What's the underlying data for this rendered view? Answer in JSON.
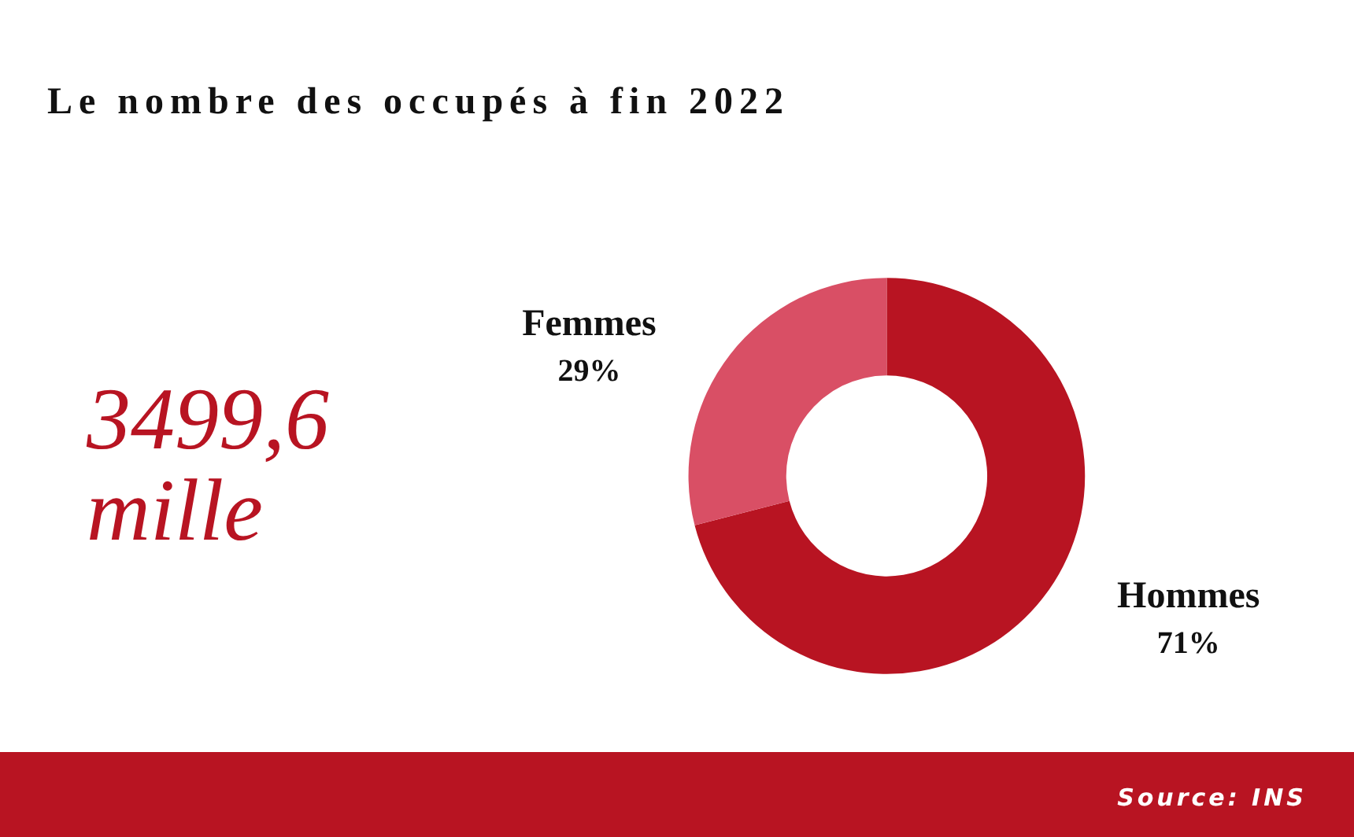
{
  "chart_data": {
    "type": "donut",
    "title": "Le nombre des occupés à fin 2022",
    "categories": [
      "Hommes",
      "Femmes"
    ],
    "values": [
      71,
      29
    ],
    "colors": [
      "#b81422",
      "#d94f65"
    ],
    "value_labels": [
      "71%",
      "29%"
    ],
    "annotations": [
      "3499,6 mille",
      "Source: INS"
    ]
  }
}
